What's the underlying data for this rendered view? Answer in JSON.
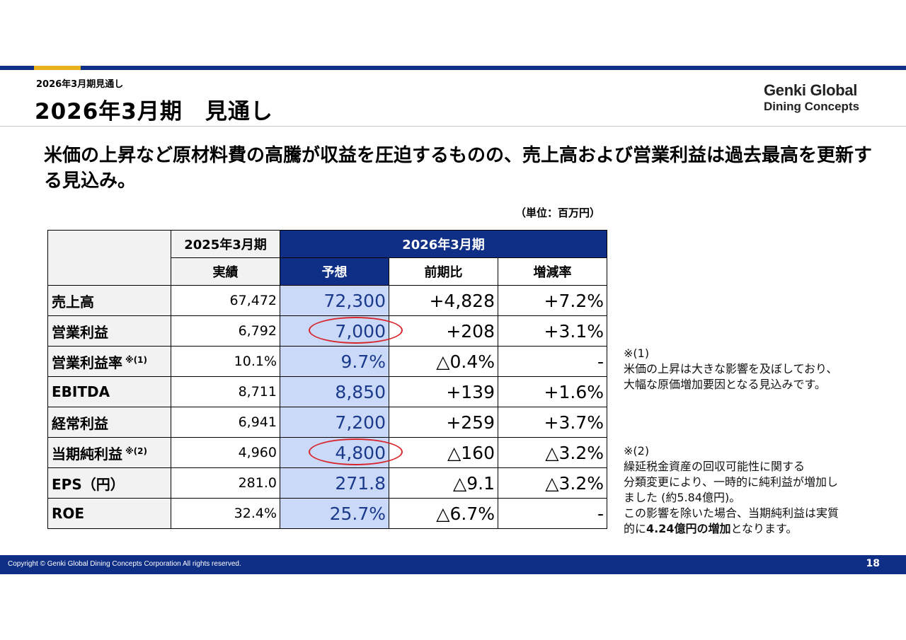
{
  "header": {
    "breadcrumb": "2026年3月期見通し",
    "title": "2026年3月期　見通し",
    "logo_line1": "Genki Global",
    "logo_line2": "Dining Concepts"
  },
  "headline": "米価の上昇など原材料費の高騰が収益を圧迫するものの、売上高および営業利益は過去最高を更新する見込み。",
  "unit": "（単位：百万円）",
  "table": {
    "col_fy25": "2025年3月期",
    "col_fy26": "2026年3月期",
    "sub_actual": "実績",
    "sub_forecast": "予想",
    "sub_yoy": "前期比",
    "sub_rate": "増減率",
    "rows": [
      {
        "label": "売上高",
        "note": "",
        "actual": "67,472",
        "forecast": "72,300",
        "yoy": "+4,828",
        "rate": "+7.2%"
      },
      {
        "label": "営業利益",
        "note": "",
        "actual": "6,792",
        "forecast": "7,000",
        "yoy": "+208",
        "rate": "+3.1%"
      },
      {
        "label": "営業利益率",
        "note": "※(1)",
        "actual": "10.1%",
        "forecast": "9.7%",
        "yoy": "△0.4%",
        "rate": "-"
      },
      {
        "label": "EBITDA",
        "note": "",
        "actual": "8,711",
        "forecast": "8,850",
        "yoy": "+139",
        "rate": "+1.6%"
      },
      {
        "label": "経常利益",
        "note": "",
        "actual": "6,941",
        "forecast": "7,200",
        "yoy": "+259",
        "rate": "+3.7%"
      },
      {
        "label": "当期純利益",
        "note": "※(2)",
        "actual": "4,960",
        "forecast": "4,800",
        "yoy": "△160",
        "rate": "△3.2%"
      },
      {
        "label": "EPS（円）",
        "note": "",
        "actual": "281.0",
        "forecast": "271.8",
        "yoy": "△9.1",
        "rate": "△3.2%"
      },
      {
        "label": "ROE",
        "note": "",
        "actual": "32.4%",
        "forecast": "25.7%",
        "yoy": "△6.7%",
        "rate": "-"
      }
    ]
  },
  "notes": {
    "n1_mark": "※(1)",
    "n1_line1": "米価の上昇は大きな影響を及ぼしており、",
    "n1_line2": "大幅な原価増加要因となる見込みです。",
    "n2_mark": "※(2)",
    "n2_line1": "繰延税金資産の回収可能性に関する",
    "n2_line2": "分類変更により、一時的に純利益が増加し",
    "n2_line3": "ました (約5.84億円)。",
    "n2_line4": "この影響を除いた場合、当期純利益は実質",
    "n2_line5_pre": "的に",
    "n2_line5_bold": "4.24億円の増加",
    "n2_line5_post": "となります。"
  },
  "footer": {
    "copyright": "Copyright © Genki Global Dining Concepts Corporation All rights reserved.",
    "page": "18"
  },
  "colors": {
    "brand_navy": "#0f2f86",
    "accent_gold": "#e8b31d",
    "forecast_fill": "#c9d9f7",
    "highlight_red": "#d9262c"
  }
}
